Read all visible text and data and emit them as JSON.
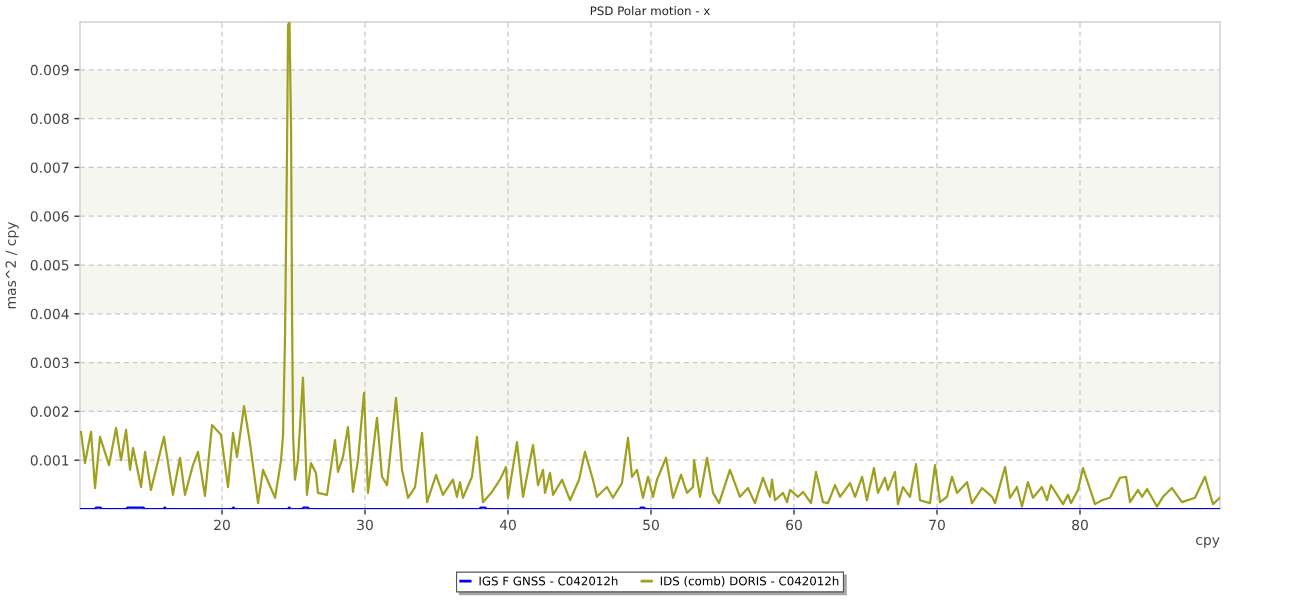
{
  "chart_data": {
    "type": "line",
    "title": "PSD Polar motion - x",
    "xlabel": "cpy",
    "ylabel": "mas^2 / cpy",
    "xlim": [
      10.07,
      89.79
    ],
    "ylim": [
      0,
      0.00998
    ],
    "xticks": [
      20,
      30,
      40,
      50,
      60,
      70,
      80
    ],
    "yticks": [
      0.001,
      0.002,
      0.003,
      0.004,
      0.005,
      0.006,
      0.007,
      0.008,
      0.009
    ],
    "grid": true,
    "legend": "bottom",
    "bands": [
      {
        "axis": "y",
        "from": 0.002,
        "to": 0.003,
        "color": "#f6f6f1"
      },
      {
        "axis": "y",
        "from": 0.004,
        "to": 0.005,
        "color": "#f6f6f1"
      },
      {
        "axis": "y",
        "from": 0.006,
        "to": 0.007,
        "color": "#f6f6f1"
      },
      {
        "axis": "y",
        "from": 0.008,
        "to": 0.009,
        "color": "#f6f6f1"
      }
    ],
    "series": [
      {
        "name": "IGS F GNSS - C042012h",
        "color": "#0000ff",
        "x": [
          10.07,
          11.12,
          11.2,
          11.5,
          11.6,
          13.29,
          13.4,
          14.5,
          14.6,
          15.9,
          16.0,
          16.1,
          20.7,
          20.8,
          20.9,
          24.6,
          24.7,
          24.8,
          25.6,
          25.7,
          26.0,
          26.1,
          38.0,
          38.1,
          38.4,
          38.5,
          49.2,
          49.3,
          49.5,
          49.6,
          89.79
        ],
        "values": [
          0,
          0,
          3e-05,
          3e-05,
          0,
          0,
          3e-05,
          3e-05,
          0,
          0,
          3e-05,
          0,
          0,
          3e-05,
          0,
          0,
          3e-05,
          0,
          0,
          3e-05,
          3e-05,
          0,
          0,
          3e-05,
          3e-05,
          0,
          0,
          3e-05,
          3e-05,
          0,
          0
        ]
      },
      {
        "name": "IDS (comb) DORIS - C042012h",
        "color": "#a0a020",
        "x": [
          10.14,
          10.42,
          10.84,
          11.12,
          11.47,
          12.1,
          12.59,
          12.94,
          13.29,
          13.57,
          13.78,
          14.34,
          14.62,
          15.03,
          15.94,
          16.57,
          17.06,
          17.41,
          17.97,
          18.32,
          18.81,
          19.3,
          19.93,
          20.42,
          20.77,
          21.05,
          21.54,
          21.96,
          22.52,
          22.87,
          23.71,
          24.13,
          24.27,
          24.41,
          24.55,
          24.62,
          24.72,
          24.83,
          24.9,
          24.97,
          25.1,
          25.31,
          25.66,
          25.8,
          25.94,
          26.22,
          26.57,
          26.71,
          27.34,
          27.9,
          28.11,
          28.46,
          28.81,
          29.16,
          29.51,
          29.93,
          30.21,
          30.84,
          31.19,
          31.54,
          31.96,
          32.17,
          32.59,
          33.01,
          33.5,
          33.99,
          34.34,
          34.97,
          35.45,
          36.15,
          36.43,
          36.64,
          36.85,
          37.48,
          37.83,
          38.25,
          38.88,
          39.44,
          39.86,
          40.0,
          40.63,
          41.05,
          41.75,
          42.1,
          42.45,
          42.59,
          42.94,
          43.15,
          43.78,
          44.34,
          44.97,
          45.38,
          45.94,
          46.22,
          46.92,
          47.34,
          47.97,
          48.39,
          48.67,
          49.02,
          49.44,
          49.79,
          50.14,
          50.42,
          51.05,
          51.54,
          52.1,
          52.52,
          52.94,
          53.01,
          53.43,
          53.92,
          54.34,
          54.76,
          55.52,
          56.22,
          56.78,
          57.27,
          57.83,
          58.32,
          58.46,
          58.67,
          59.23,
          59.51,
          59.72,
          60.28,
          60.63,
          61.19,
          61.54,
          62.03,
          62.38,
          62.87,
          63.22,
          63.92,
          64.27,
          64.76,
          65.1,
          65.59,
          65.87,
          66.36,
          66.57,
          67.06,
          67.27,
          67.62,
          68.11,
          68.53,
          68.81,
          69.51,
          69.86,
          70.21,
          70.7,
          71.05,
          71.4,
          72.1,
          72.45,
          73.15,
          73.85,
          74.06,
          74.76,
          75.1,
          75.59,
          75.94,
          76.36,
          76.71,
          77.34,
          77.69,
          77.97,
          78.81,
          79.16,
          79.37,
          79.86,
          80.21,
          81.05,
          81.54,
          82.1,
          82.8,
          83.22,
          83.5,
          84.06,
          84.34,
          84.69,
          85.38,
          85.8,
          86.43,
          87.13,
          88.04,
          88.74,
          89.3,
          89.79
        ],
        "values": [
          0.00158,
          0.00094,
          0.00158,
          0.00043,
          0.00148,
          0.0009,
          0.00166,
          0.001,
          0.00162,
          0.0008,
          0.00125,
          0.00045,
          0.00117,
          0.00039,
          0.00148,
          0.00029,
          0.00105,
          0.00029,
          0.0009,
          0.00117,
          0.00027,
          0.00172,
          0.00152,
          0.00045,
          0.00156,
          0.00107,
          0.00211,
          0.00135,
          0.00012,
          0.0008,
          0.00023,
          0.001,
          0.00152,
          0.00357,
          0.0074,
          0.00992,
          0.00998,
          0.00777,
          0.00398,
          0.00152,
          0.0006,
          0.001,
          0.00269,
          0.00156,
          0.00029,
          0.00094,
          0.00074,
          0.00033,
          0.00029,
          0.00141,
          0.00076,
          0.00107,
          0.00168,
          0.00035,
          0.001,
          0.00238,
          0.00033,
          0.00187,
          0.00066,
          0.00049,
          0.00168,
          0.00228,
          0.0008,
          0.00023,
          0.00045,
          0.00156,
          0.00014,
          0.0007,
          0.00029,
          0.0006,
          0.00025,
          0.00055,
          0.00023,
          0.00066,
          0.00148,
          0.00014,
          0.00035,
          0.0006,
          0.00086,
          0.00023,
          0.00137,
          0.00025,
          0.00131,
          0.00049,
          0.0008,
          0.00033,
          0.00074,
          0.00029,
          0.0006,
          0.00018,
          0.0006,
          0.00117,
          0.0006,
          0.00025,
          0.00045,
          0.00023,
          0.00053,
          0.00146,
          0.00066,
          0.0008,
          0.00023,
          0.00066,
          0.00025,
          0.0006,
          0.00105,
          0.00023,
          0.0007,
          0.00033,
          0.00045,
          0.001,
          0.00025,
          0.00105,
          0.00033,
          0.00012,
          0.0008,
          0.00025,
          0.00043,
          0.00012,
          0.00064,
          0.00025,
          0.0006,
          0.00018,
          0.00033,
          0.00014,
          0.00039,
          0.00025,
          0.00035,
          0.00012,
          0.00076,
          0.00014,
          0.00012,
          0.00049,
          0.00025,
          0.00053,
          0.00025,
          0.00066,
          0.00018,
          0.00084,
          0.00033,
          0.00064,
          0.00039,
          0.00076,
          0.0001,
          0.00045,
          0.00025,
          0.00092,
          0.00018,
          0.00012,
          0.0009,
          0.00014,
          0.00025,
          0.00066,
          0.00033,
          0.00055,
          0.00012,
          0.00043,
          0.00025,
          0.00012,
          0.00086,
          0.00023,
          0.00045,
          5e-05,
          0.00055,
          0.00023,
          0.00045,
          0.00018,
          0.00049,
          0.0001,
          0.00029,
          0.00012,
          0.00039,
          0.00084,
          0.0001,
          0.00018,
          0.00023,
          0.00064,
          0.00066,
          0.00014,
          0.00039,
          0.00025,
          0.00041,
          5e-05,
          0.00025,
          0.00043,
          0.00014,
          0.00023,
          0.00066,
          0.0001,
          0.00023
        ]
      }
    ]
  }
}
